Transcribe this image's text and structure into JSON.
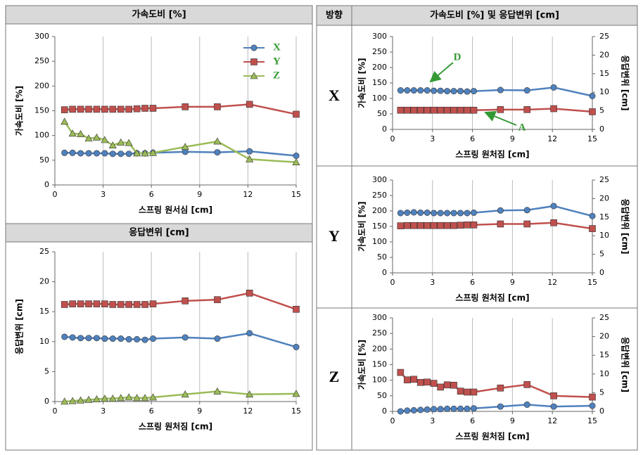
{
  "table": {
    "direction_header": "방향",
    "right_header": "가속도비 [%] 및 응답변위 [cm]",
    "rows": [
      "X",
      "Y",
      "Z"
    ]
  },
  "chart_data": [
    {
      "type": "line",
      "title": "가속도비 [%]",
      "x_label": "스프링 원서심 [cm]",
      "y_label": "가속도비 [%]",
      "x": [
        0.6,
        1.1,
        1.6,
        2.1,
        2.6,
        3.1,
        3.6,
        4.1,
        4.6,
        5.1,
        5.6,
        6.1,
        8.1,
        10.1,
        12.1,
        15
      ],
      "xlim": [
        0,
        15
      ],
      "xticks": [
        0,
        3,
        6,
        9,
        12,
        15
      ],
      "ylim": [
        0,
        300
      ],
      "yticks": [
        0,
        50,
        100,
        150,
        200,
        250,
        300
      ],
      "grid": "x",
      "legend": "top-right",
      "series": [
        {
          "name": "X",
          "color": "#4f81bd",
          "marker": "circle",
          "values": [
            65,
            65,
            64,
            64,
            64,
            64,
            63,
            63,
            63,
            64,
            64,
            65,
            67,
            66,
            68,
            59
          ]
        },
        {
          "name": "Y",
          "color": "#c0504d",
          "marker": "square",
          "values": [
            152,
            153,
            153,
            153,
            153,
            153,
            153,
            153,
            153,
            154,
            155,
            155,
            158,
            158,
            163,
            143
          ]
        },
        {
          "name": "Z",
          "color": "#9bbb59",
          "marker": "triangle",
          "values": [
            128,
            104,
            103,
            94,
            96,
            91,
            80,
            86,
            85,
            64,
            64,
            65,
            77,
            88,
            52,
            46
          ]
        }
      ]
    },
    {
      "type": "line",
      "title": "응답변위 [cm]",
      "x_label": "스프링 원처짐 [cm]",
      "y_label": "응답변위 [cm]",
      "x": [
        0.6,
        1.1,
        1.6,
        2.1,
        2.6,
        3.1,
        3.6,
        4.1,
        4.6,
        5.1,
        5.6,
        6.1,
        8.1,
        10.1,
        12.1,
        15
      ],
      "xlim": [
        0,
        15
      ],
      "xticks": [
        0,
        3,
        6,
        9,
        12,
        15
      ],
      "ylim": [
        0,
        25
      ],
      "yticks": [
        0,
        5,
        10,
        15,
        20,
        25
      ],
      "grid": "x",
      "series": [
        {
          "color": "#4f81bd",
          "marker": "circle",
          "values": [
            10.8,
            10.7,
            10.6,
            10.6,
            10.6,
            10.5,
            10.5,
            10.5,
            10.4,
            10.4,
            10.3,
            10.5,
            10.7,
            10.5,
            11.4,
            9.1
          ]
        },
        {
          "color": "#c0504d",
          "marker": "square",
          "values": [
            16.2,
            16.3,
            16.3,
            16.3,
            16.3,
            16.3,
            16.2,
            16.2,
            16.2,
            16.2,
            16.2,
            16.3,
            16.8,
            17.0,
            18.1,
            15.4
          ]
        },
        {
          "color": "#9bbb59",
          "marker": "triangle",
          "values": [
            0.0,
            0.1,
            0.2,
            0.3,
            0.4,
            0.5,
            0.5,
            0.6,
            0.7,
            0.6,
            0.6,
            0.7,
            1.2,
            1.7,
            1.2,
            1.3
          ]
        }
      ]
    },
    {
      "type": "line",
      "x_label": "스프링 원처짐 [cm]",
      "y_label": "가속도비 [%]",
      "y2_label": "응답변위 [cm]",
      "x": [
        0.6,
        1.1,
        1.6,
        2.1,
        2.6,
        3.1,
        3.6,
        4.1,
        4.6,
        5.1,
        5.6,
        6.1,
        8.1,
        10.1,
        12.1,
        15
      ],
      "xlim": [
        0,
        15
      ],
      "xticks": [
        0,
        3,
        6,
        9,
        12,
        15
      ],
      "ylim": [
        0,
        300
      ],
      "yticks": [
        0,
        50,
        100,
        150,
        200,
        250,
        300
      ],
      "y2lim": [
        0,
        25
      ],
      "y2ticks": [
        0,
        5,
        10,
        15,
        20,
        25
      ],
      "grid": "x",
      "annotations": [
        "D",
        "A"
      ],
      "series": [
        {
          "color": "#4f81bd",
          "marker": "circle",
          "axis": "y2",
          "values": [
            10.5,
            10.5,
            10.5,
            10.5,
            10.5,
            10.4,
            10.4,
            10.3,
            10.3,
            10.3,
            10.2,
            10.3,
            10.6,
            10.5,
            11.3,
            9.0
          ]
        },
        {
          "color": "#c0504d",
          "marker": "square",
          "values": [
            62,
            62,
            62,
            62,
            62,
            62,
            62,
            62,
            62,
            62,
            62,
            62,
            64,
            64,
            67,
            57
          ]
        }
      ]
    },
    {
      "type": "line",
      "x_label": "스프링 원처짐 [cm]",
      "y_label": "가속도비 [%]",
      "y2_label": "응답변위 [cm]",
      "x": [
        0.6,
        1.1,
        1.6,
        2.1,
        2.6,
        3.1,
        3.6,
        4.1,
        4.6,
        5.1,
        5.6,
        6.1,
        8.1,
        10.1,
        12.1,
        15
      ],
      "xlim": [
        0,
        15
      ],
      "xticks": [
        0,
        3,
        6,
        9,
        12,
        15
      ],
      "ylim": [
        0,
        300
      ],
      "yticks": [
        0,
        50,
        100,
        150,
        200,
        250,
        300
      ],
      "y2lim": [
        0,
        25
      ],
      "y2ticks": [
        0,
        5,
        10,
        15,
        20,
        25
      ],
      "grid": "x",
      "series": [
        {
          "color": "#4f81bd",
          "marker": "circle",
          "axis": "y2",
          "values": [
            16.1,
            16.2,
            16.3,
            16.2,
            16.2,
            16.1,
            16.1,
            16.1,
            16.1,
            16.1,
            16.1,
            16.2,
            16.8,
            16.9,
            18.0,
            15.3
          ]
        },
        {
          "color": "#c0504d",
          "marker": "square",
          "values": [
            152,
            153,
            153,
            153,
            153,
            153,
            153,
            153,
            153,
            154,
            155,
            155,
            158,
            158,
            162,
            143
          ]
        }
      ]
    },
    {
      "type": "line",
      "x_label": "스프링 원처짐 [cm]",
      "y_label": "가속도비 [%]",
      "y2_label": "응답변위 [cm]",
      "x": [
        0.6,
        1.1,
        1.6,
        2.1,
        2.6,
        3.1,
        3.6,
        4.1,
        4.6,
        5.1,
        5.6,
        6.1,
        8.1,
        10.1,
        12.1,
        15
      ],
      "xlim": [
        0,
        15
      ],
      "xticks": [
        0,
        3,
        6,
        9,
        12,
        15
      ],
      "ylim": [
        0,
        300
      ],
      "yticks": [
        0,
        50,
        100,
        150,
        200,
        250,
        300
      ],
      "y2lim": [
        0,
        25
      ],
      "y2ticks": [
        0,
        5,
        10,
        15,
        20,
        25
      ],
      "grid": "x",
      "series": [
        {
          "color": "#4f81bd",
          "marker": "circle",
          "axis": "y2",
          "values": [
            0.0,
            0.2,
            0.3,
            0.4,
            0.5,
            0.6,
            0.6,
            0.7,
            0.7,
            0.7,
            0.7,
            0.8,
            1.3,
            1.8,
            1.3,
            1.5
          ]
        },
        {
          "color": "#c0504d",
          "marker": "square",
          "values": [
            125,
            101,
            103,
            93,
            94,
            90,
            78,
            85,
            84,
            65,
            62,
            62,
            75,
            86,
            50,
            46
          ]
        }
      ]
    }
  ]
}
